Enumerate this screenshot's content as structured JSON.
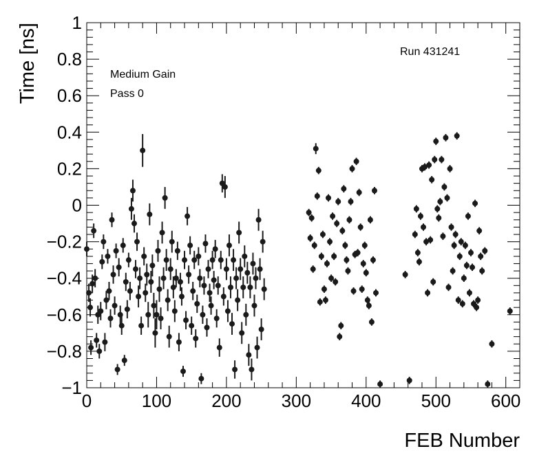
{
  "chart_data": {
    "type": "scatter",
    "title": "",
    "xlabel": "FEB Number",
    "ylabel": "Time [ns]",
    "xlim": [
      0,
      620
    ],
    "ylim": [
      -1,
      1
    ],
    "xticks": [
      0,
      100,
      200,
      300,
      400,
      500,
      600
    ],
    "xtick_labels": [
      "0",
      "100",
      "200",
      "300",
      "400",
      "500",
      "600"
    ],
    "yticks": [
      -1,
      -0.8,
      -0.6,
      -0.4,
      -0.2,
      0,
      0.2,
      0.4,
      0.6,
      0.8,
      1
    ],
    "ytick_labels": [
      "−1",
      "−0.8",
      "−0.6",
      "−0.4",
      "−0.2",
      "0",
      "0.2",
      "0.4",
      "0.6",
      "0.8",
      "1"
    ],
    "grid": false,
    "annotations": [
      "Medium Gain",
      "Pass 0",
      "Run 431241"
    ],
    "marker_color": "#1a1a1a",
    "points": [
      [
        0,
        -0.24,
        0.04
      ],
      [
        3,
        -0.48,
        0.05
      ],
      [
        5,
        -0.56,
        0.05
      ],
      [
        6,
        -0.78,
        0.04
      ],
      [
        8,
        -0.43,
        0.05
      ],
      [
        10,
        -0.14,
        0.04
      ],
      [
        12,
        -0.4,
        0.05
      ],
      [
        14,
        -0.74,
        0.04
      ],
      [
        16,
        -0.6,
        0.05
      ],
      [
        18,
        -0.8,
        0.04
      ],
      [
        20,
        -0.58,
        0.05
      ],
      [
        22,
        -0.31,
        0.04
      ],
      [
        24,
        -0.2,
        0.04
      ],
      [
        26,
        -0.75,
        0.05
      ],
      [
        28,
        -0.52,
        0.05
      ],
      [
        30,
        -0.28,
        0.04
      ],
      [
        32,
        -0.47,
        0.05
      ],
      [
        34,
        -0.62,
        0.05
      ],
      [
        36,
        -0.08,
        0.04
      ],
      [
        38,
        -0.38,
        0.05
      ],
      [
        40,
        -0.55,
        0.05
      ],
      [
        42,
        -0.25,
        0.04
      ],
      [
        44,
        -0.9,
        0.03
      ],
      [
        46,
        -0.34,
        0.05
      ],
      [
        48,
        -0.6,
        0.05
      ],
      [
        50,
        -0.66,
        0.05
      ],
      [
        52,
        -0.22,
        0.04
      ],
      [
        54,
        -0.85,
        0.03
      ],
      [
        56,
        -0.42,
        0.05
      ],
      [
        58,
        -0.57,
        0.05
      ],
      [
        60,
        -0.3,
        0.04
      ],
      [
        62,
        -0.47,
        0.05
      ],
      [
        64,
        -0.02,
        0.06
      ],
      [
        66,
        0.08,
        0.06
      ],
      [
        68,
        -0.1,
        0.05
      ],
      [
        70,
        -0.35,
        0.05
      ],
      [
        72,
        -0.2,
        0.05
      ],
      [
        74,
        -0.5,
        0.06
      ],
      [
        76,
        -0.4,
        0.06
      ],
      [
        78,
        -0.66,
        0.05
      ],
      [
        80,
        0.3,
        0.09
      ],
      [
        82,
        -0.28,
        0.05
      ],
      [
        84,
        -0.48,
        0.05
      ],
      [
        86,
        -0.38,
        0.06
      ],
      [
        88,
        -0.6,
        0.07
      ],
      [
        90,
        -0.05,
        0.06
      ],
      [
        92,
        -0.42,
        0.06
      ],
      [
        94,
        -0.33,
        0.06
      ],
      [
        96,
        -0.55,
        0.07
      ],
      [
        98,
        -0.7,
        0.08
      ],
      [
        100,
        -0.6,
        0.08
      ],
      [
        102,
        -0.25,
        0.06
      ],
      [
        104,
        -0.46,
        0.07
      ],
      [
        106,
        -0.62,
        0.06
      ],
      [
        108,
        -0.15,
        0.06
      ],
      [
        110,
        -0.4,
        0.06
      ],
      [
        112,
        0.04,
        0.06
      ],
      [
        114,
        -0.3,
        0.06
      ],
      [
        116,
        -0.52,
        0.06
      ],
      [
        118,
        -0.72,
        0.06
      ],
      [
        120,
        -0.35,
        0.06
      ],
      [
        122,
        -0.2,
        0.06
      ],
      [
        124,
        -0.45,
        0.06
      ],
      [
        126,
        -0.58,
        0.06
      ],
      [
        128,
        -0.4,
        0.05
      ],
      [
        130,
        -0.25,
        0.05
      ],
      [
        132,
        -0.75,
        0.05
      ],
      [
        134,
        -0.42,
        0.05
      ],
      [
        136,
        -0.5,
        0.05
      ],
      [
        138,
        -0.91,
        0.03
      ],
      [
        140,
        -0.3,
        0.05
      ],
      [
        142,
        -0.63,
        0.05
      ],
      [
        144,
        -0.06,
        0.05
      ],
      [
        146,
        -0.38,
        0.05
      ],
      [
        148,
        -0.22,
        0.05
      ],
      [
        150,
        -0.66,
        0.05
      ],
      [
        152,
        -0.47,
        0.05
      ],
      [
        154,
        -0.3,
        0.05
      ],
      [
        156,
        -0.73,
        0.05
      ],
      [
        158,
        -0.54,
        0.05
      ],
      [
        160,
        -0.28,
        0.05
      ],
      [
        162,
        -0.4,
        0.05
      ],
      [
        164,
        -0.95,
        0.03
      ],
      [
        166,
        -0.6,
        0.05
      ],
      [
        168,
        -0.44,
        0.05
      ],
      [
        170,
        -0.21,
        0.05
      ],
      [
        172,
        -0.67,
        0.05
      ],
      [
        174,
        -0.35,
        0.05
      ],
      [
        176,
        -0.48,
        0.05
      ],
      [
        178,
        -0.55,
        0.05
      ],
      [
        180,
        -0.3,
        0.05
      ],
      [
        182,
        -0.41,
        0.05
      ],
      [
        184,
        -0.24,
        0.05
      ],
      [
        186,
        -0.62,
        0.05
      ],
      [
        188,
        -0.44,
        0.05
      ],
      [
        190,
        -0.78,
        0.05
      ],
      [
        192,
        -0.3,
        0.05
      ],
      [
        194,
        0.12,
        0.05
      ],
      [
        196,
        -0.5,
        0.05
      ],
      [
        198,
        0.1,
        0.06
      ],
      [
        200,
        -0.35,
        0.06
      ],
      [
        202,
        -0.58,
        0.06
      ],
      [
        204,
        -0.22,
        0.06
      ],
      [
        206,
        -0.45,
        0.06
      ],
      [
        208,
        -0.65,
        0.06
      ],
      [
        210,
        -0.3,
        0.06
      ],
      [
        212,
        -0.9,
        0.05
      ],
      [
        214,
        -0.4,
        0.06
      ],
      [
        216,
        -0.52,
        0.06
      ],
      [
        218,
        -0.15,
        0.06
      ],
      [
        220,
        -0.35,
        0.06
      ],
      [
        222,
        -0.7,
        0.06
      ],
      [
        224,
        -0.45,
        0.06
      ],
      [
        226,
        -0.28,
        0.06
      ],
      [
        228,
        -0.6,
        0.06
      ],
      [
        230,
        -0.37,
        0.06
      ],
      [
        232,
        -0.82,
        0.06
      ],
      [
        234,
        -0.45,
        0.06
      ],
      [
        236,
        -0.9,
        0.06
      ],
      [
        238,
        -0.32,
        0.06
      ],
      [
        240,
        -0.55,
        0.06
      ],
      [
        242,
        -0.4,
        0.06
      ],
      [
        244,
        -0.78,
        0.06
      ],
      [
        246,
        -0.08,
        0.06
      ],
      [
        248,
        -0.35,
        0.06
      ],
      [
        250,
        -0.68,
        0.06
      ],
      [
        252,
        -0.2,
        0.06
      ],
      [
        254,
        -0.46,
        0.06
      ],
      [
        318,
        -0.04,
        0.02
      ],
      [
        320,
        -0.18,
        0.02
      ],
      [
        322,
        -0.07,
        0.02
      ],
      [
        324,
        -0.35,
        0.02
      ],
      [
        326,
        -0.22,
        0.02
      ],
      [
        328,
        0.31,
        0.03
      ],
      [
        330,
        0.05,
        0.02
      ],
      [
        332,
        0.19,
        0.02
      ],
      [
        334,
        -0.53,
        0.02
      ],
      [
        336,
        -0.28,
        0.02
      ],
      [
        338,
        -0.16,
        0.02
      ],
      [
        340,
        -0.46,
        0.02
      ],
      [
        342,
        -0.52,
        0.02
      ],
      [
        344,
        -0.32,
        0.02
      ],
      [
        346,
        0.04,
        0.02
      ],
      [
        348,
        -0.2,
        0.02
      ],
      [
        350,
        -0.4,
        0.02
      ],
      [
        352,
        -0.06,
        0.02
      ],
      [
        354,
        -0.28,
        0.02
      ],
      [
        356,
        -0.42,
        0.02
      ],
      [
        358,
        -0.1,
        0.02
      ],
      [
        360,
        0.02,
        0.02
      ],
      [
        362,
        -0.72,
        0.02
      ],
      [
        364,
        -0.66,
        0.02
      ],
      [
        366,
        -0.14,
        0.02
      ],
      [
        368,
        0.09,
        0.02
      ],
      [
        370,
        -0.22,
        0.02
      ],
      [
        372,
        -0.3,
        0.02
      ],
      [
        374,
        -0.36,
        0.02
      ],
      [
        376,
        -0.08,
        0.02
      ],
      [
        378,
        0.02,
        0.02
      ],
      [
        380,
        0.2,
        0.02
      ],
      [
        382,
        -0.47,
        0.02
      ],
      [
        384,
        -0.27,
        0.02
      ],
      [
        386,
        0.24,
        0.02
      ],
      [
        388,
        -0.26,
        0.02
      ],
      [
        390,
        0.07,
        0.02
      ],
      [
        392,
        -0.12,
        0.02
      ],
      [
        394,
        -0.46,
        0.02
      ],
      [
        396,
        -0.32,
        0.02
      ],
      [
        398,
        -0.22,
        0.02
      ],
      [
        400,
        -0.37,
        0.02
      ],
      [
        402,
        -0.52,
        0.02
      ],
      [
        404,
        -0.55,
        0.02
      ],
      [
        406,
        -0.08,
        0.02
      ],
      [
        408,
        -0.64,
        0.02
      ],
      [
        410,
        -0.3,
        0.02
      ],
      [
        412,
        0.08,
        0.02
      ],
      [
        414,
        -0.48,
        0.02
      ],
      [
        420,
        -0.98,
        0.02
      ],
      [
        456,
        -0.38,
        0.02
      ],
      [
        462,
        -0.96,
        0.02
      ],
      [
        470,
        -0.16,
        0.02
      ],
      [
        472,
        -0.02,
        0.02
      ],
      [
        474,
        -0.26,
        0.02
      ],
      [
        476,
        -0.31,
        0.02
      ],
      [
        478,
        -0.06,
        0.02
      ],
      [
        480,
        0.2,
        0.02
      ],
      [
        482,
        -0.12,
        0.02
      ],
      [
        484,
        0.21,
        0.02
      ],
      [
        486,
        -0.2,
        0.02
      ],
      [
        488,
        -0.48,
        0.02
      ],
      [
        490,
        0.22,
        0.02
      ],
      [
        492,
        -0.19,
        0.02
      ],
      [
        494,
        0.14,
        0.02
      ],
      [
        496,
        -0.42,
        0.02
      ],
      [
        498,
        0.25,
        0.02
      ],
      [
        500,
        0.35,
        0.02
      ],
      [
        502,
        -0.02,
        0.02
      ],
      [
        504,
        -0.07,
        0.02
      ],
      [
        506,
        0.02,
        0.02
      ],
      [
        508,
        0.25,
        0.02
      ],
      [
        510,
        -0.17,
        0.02
      ],
      [
        512,
        0.1,
        0.02
      ],
      [
        514,
        0.37,
        0.02
      ],
      [
        516,
        0.04,
        0.02
      ],
      [
        518,
        -0.45,
        0.02
      ],
      [
        520,
        0.2,
        0.02
      ],
      [
        522,
        -0.12,
        0.02
      ],
      [
        524,
        -0.36,
        0.02
      ],
      [
        526,
        -0.22,
        0.02
      ],
      [
        528,
        -0.16,
        0.02
      ],
      [
        530,
        0.38,
        0.02
      ],
      [
        532,
        -0.52,
        0.02
      ],
      [
        534,
        -0.28,
        0.02
      ],
      [
        536,
        -0.2,
        0.02
      ],
      [
        538,
        -0.54,
        0.02
      ],
      [
        540,
        -0.4,
        0.02
      ],
      [
        542,
        -0.22,
        0.02
      ],
      [
        544,
        -0.33,
        0.02
      ],
      [
        546,
        -0.06,
        0.02
      ],
      [
        548,
        -0.48,
        0.02
      ],
      [
        550,
        -0.26,
        0.02
      ],
      [
        552,
        -0.34,
        0.02
      ],
      [
        554,
        -0.54,
        0.02
      ],
      [
        556,
        0.01,
        0.02
      ],
      [
        558,
        -0.56,
        0.02
      ],
      [
        560,
        -0.52,
        0.02
      ],
      [
        562,
        -0.14,
        0.02
      ],
      [
        564,
        -0.28,
        0.02
      ],
      [
        566,
        -0.36,
        0.02
      ],
      [
        570,
        -0.25,
        0.02
      ],
      [
        574,
        -0.98,
        0.02
      ],
      [
        580,
        -0.76,
        0.02
      ],
      [
        606,
        -0.58,
        0.02
      ]
    ]
  }
}
